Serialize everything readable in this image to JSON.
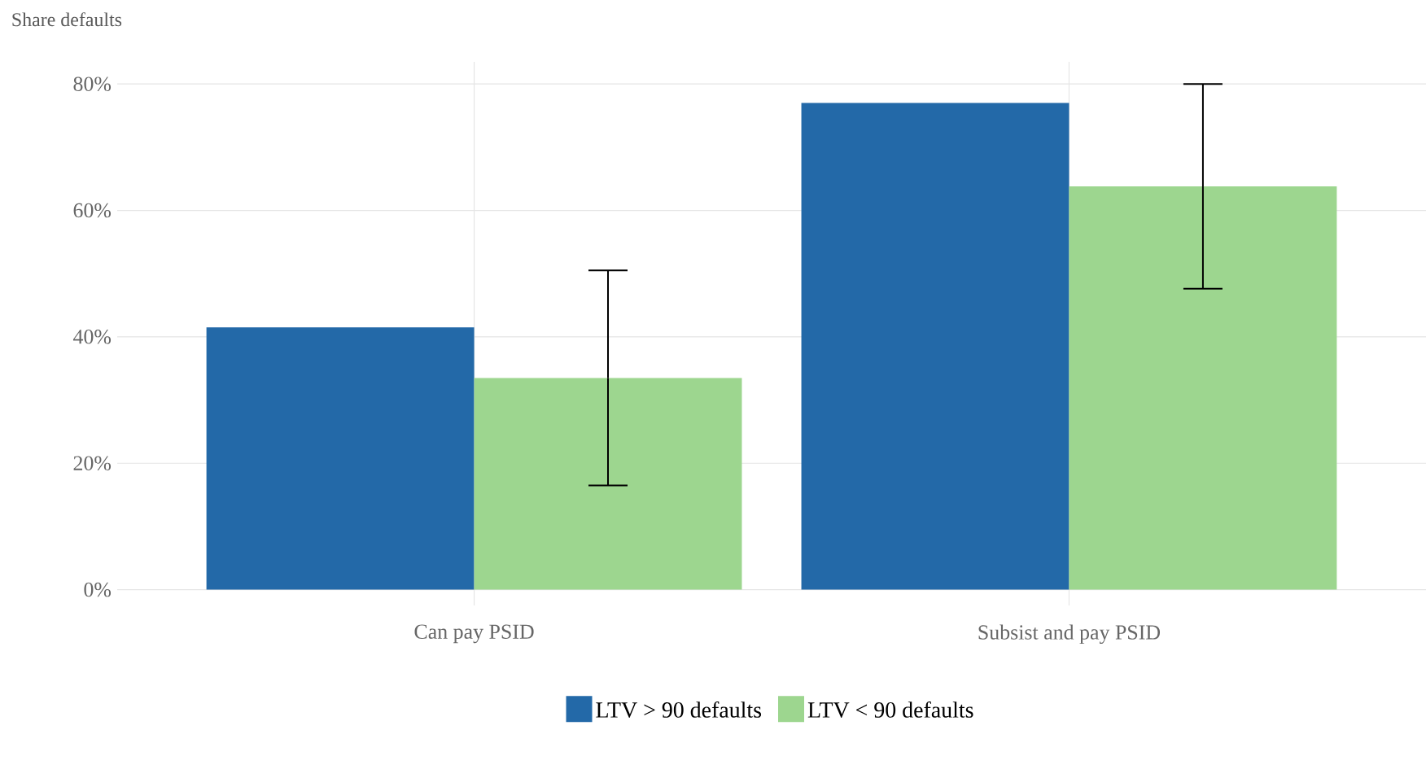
{
  "chart_data": {
    "type": "bar",
    "ylabel": "Share defaults",
    "categories": [
      "Can pay PSID",
      "Subsist and pay PSID"
    ],
    "series": [
      {
        "name": "LTV > 90 defaults",
        "color": "#2369a8",
        "values": [
          41.5,
          77.0
        ]
      },
      {
        "name": "LTV < 90 defaults",
        "color": "#9dd68f",
        "values": [
          33.5,
          63.8
        ],
        "errors": [
          17,
          16.2
        ]
      }
    ],
    "ylim": [
      -2.5,
      83.5
    ],
    "yticks": [
      {
        "value": 0,
        "label": "0%"
      },
      {
        "value": 20,
        "label": "20%"
      },
      {
        "value": 40,
        "label": "40%"
      },
      {
        "value": 60,
        "label": "60%"
      },
      {
        "value": 80,
        "label": "80%"
      }
    ],
    "grid": true,
    "legend": "bottom"
  }
}
